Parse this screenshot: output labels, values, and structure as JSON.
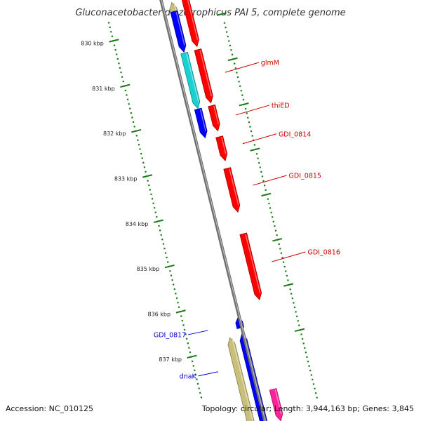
{
  "title": "Gluconacetobacter diazotrophicus PAI 5, complete genome",
  "footer": {
    "accession": "Accession: NC_010125",
    "summary": "Topology: circular; Length: 3,944,163 bp; Genes: 3,845"
  },
  "colors": {
    "backbone": "#8c8c8c",
    "tick": "#1a7a1a",
    "forward_label": "#cc0000",
    "reverse_label": "#0000cc",
    "gene_red": "#ff0000",
    "gene_blue": "#0000ff",
    "gene_cyan": "#1bd0d0",
    "gene_khaki": "#c8bf7a",
    "gene_pink": "#ff2299"
  },
  "scale_ticks": [
    {
      "kbp": 830,
      "label": "830 kbp"
    },
    {
      "kbp": 831,
      "label": "831 kbp"
    },
    {
      "kbp": 832,
      "label": "832 kbp"
    },
    {
      "kbp": 833,
      "label": "833 kbp"
    },
    {
      "kbp": 834,
      "label": "834 kbp"
    },
    {
      "kbp": 835,
      "label": "835 kbp"
    },
    {
      "kbp": 836,
      "label": "836 kbp"
    },
    {
      "kbp": 837,
      "label": "837 kbp"
    }
  ],
  "genes": [
    {
      "label": "",
      "strand": "+",
      "track": "outer",
      "start_kbp": 829.5,
      "end_kbp": 830.55,
      "color": "gene_red"
    },
    {
      "label": "",
      "strand": "-",
      "track": "inner",
      "start_kbp": 829.5,
      "end_kbp": 830.25,
      "color": "gene_khaki"
    },
    {
      "label": "",
      "strand": "+",
      "track": "inner",
      "start_kbp": 829.7,
      "end_kbp": 830.6,
      "color": "gene_blue"
    },
    {
      "label": "",
      "strand": "+",
      "track": "outer",
      "start_kbp": 830.62,
      "end_kbp": 831.8,
      "color": "gene_red"
    },
    {
      "label": "glmM",
      "strand": "+",
      "track": "inner",
      "start_kbp": 830.62,
      "end_kbp": 831.85,
      "color": "gene_cyan"
    },
    {
      "label": "",
      "strand": "+",
      "track": "outer",
      "start_kbp": 831.86,
      "end_kbp": 832.42,
      "color": "gene_red"
    },
    {
      "label": "thiED",
      "strand": "+",
      "track": "inner",
      "start_kbp": 831.86,
      "end_kbp": 832.5,
      "color": "gene_blue"
    },
    {
      "label": "GDI_0814",
      "strand": "+",
      "track": "outer",
      "start_kbp": 832.55,
      "end_kbp": 833.08,
      "color": "gene_red"
    },
    {
      "label": "GDI_0815",
      "strand": "+",
      "track": "outer",
      "start_kbp": 833.25,
      "end_kbp": 834.22,
      "color": "gene_red"
    },
    {
      "label": "GDI_0816",
      "strand": "+",
      "track": "outer",
      "start_kbp": 834.7,
      "end_kbp": 836.16,
      "color": "gene_red"
    },
    {
      "label": "GDI_0817",
      "strand": "-",
      "track": "inner",
      "start_kbp": 836.42,
      "end_kbp": 836.65,
      "color": "gene_blue"
    },
    {
      "label": "dnaK",
      "strand": "-",
      "track": "inner",
      "start_kbp": 836.78,
      "end_kbp": 838.8,
      "color": "gene_blue"
    },
    {
      "label": "",
      "strand": "-",
      "track": "far_inner",
      "start_kbp": 836.8,
      "end_kbp": 838.8,
      "color": "gene_khaki"
    },
    {
      "label": "",
      "strand": "+",
      "track": "outer",
      "start_kbp": 838.1,
      "end_kbp": 838.8,
      "color": "gene_pink"
    }
  ]
}
